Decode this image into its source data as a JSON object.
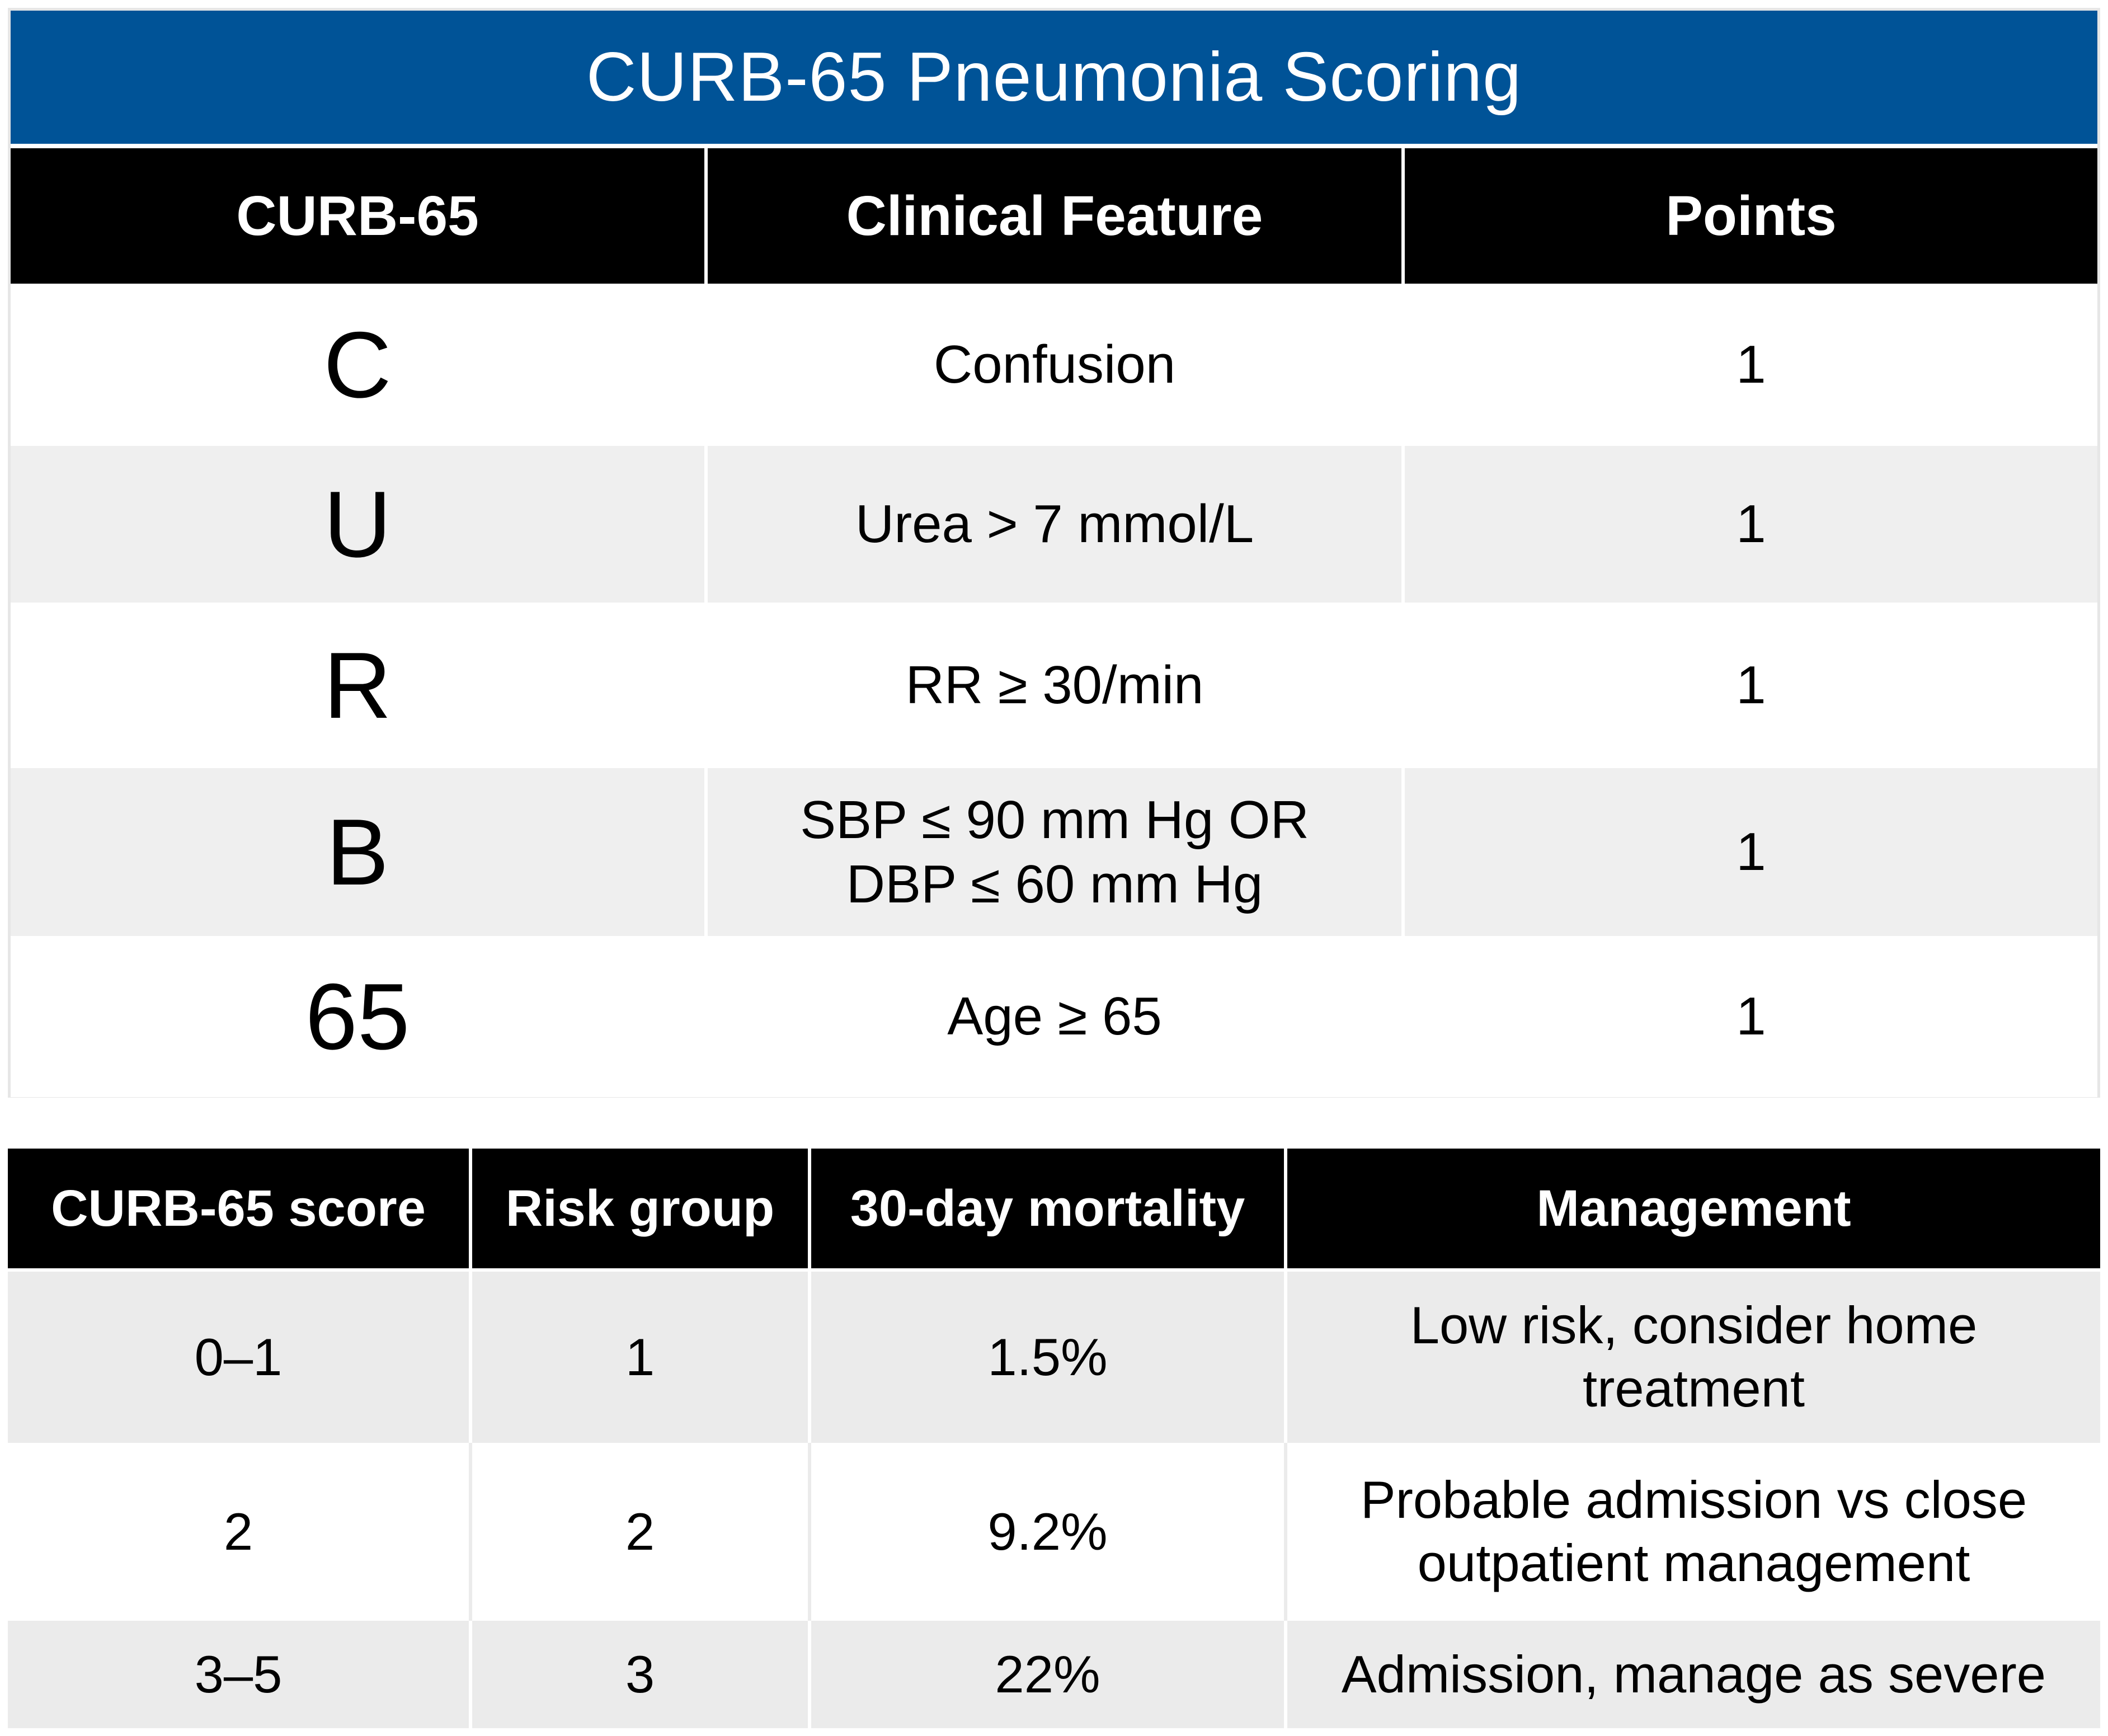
{
  "title": "CURB-65 Pneumonia Scoring",
  "criteria_table": {
    "headers": [
      "CURB-65",
      "Clinical Feature",
      "Points"
    ],
    "rows": [
      {
        "letter": "C",
        "feature": "Confusion",
        "points": "1"
      },
      {
        "letter": "U",
        "feature": "Urea > 7 mmol/L",
        "points": "1"
      },
      {
        "letter": "R",
        "feature": "RR ≥ 30/min",
        "points": "1"
      },
      {
        "letter": "B",
        "feature": "SBP ≤ 90 mm Hg OR\nDBP ≤ 60 mm Hg",
        "points": "1"
      },
      {
        "letter": "65",
        "feature": "Age ≥ 65",
        "points": "1"
      }
    ]
  },
  "risk_table": {
    "headers": [
      "CURB-65 score",
      "Risk group",
      "30-day mortality",
      "Management"
    ],
    "rows": [
      {
        "score": "0–1",
        "group": "1",
        "mortality": "1.5%",
        "management": "Low risk, consider home\ntreatment"
      },
      {
        "score": "2",
        "group": "2",
        "mortality": "9.2%",
        "management": "Probable admission vs close\noutpatient management"
      },
      {
        "score": "3–5",
        "group": "3",
        "mortality": "22%",
        "management": "Admission, manage as severe"
      }
    ]
  },
  "colors": {
    "title_bar": "#005397",
    "header_bg": "#000000",
    "row_shade": "#efefef"
  }
}
